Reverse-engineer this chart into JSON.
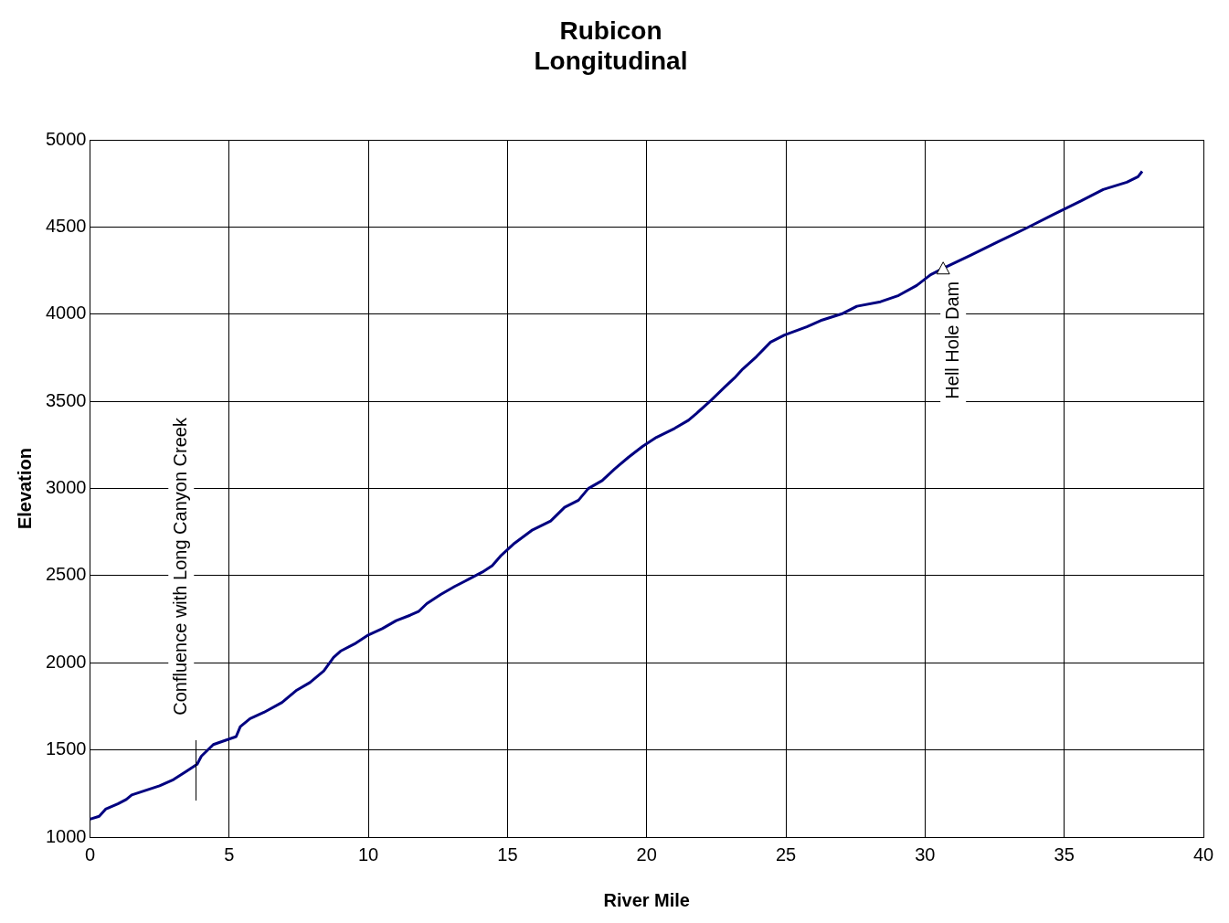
{
  "chart_data": {
    "type": "line",
    "title": "Rubicon\nLongitudinal",
    "xlabel": "River Mile",
    "ylabel": "Elevation",
    "xlim": [
      0,
      40
    ],
    "xticks": [
      0,
      5,
      10,
      15,
      20,
      25,
      30,
      35,
      40
    ],
    "ylim": [
      1000,
      5000
    ],
    "yticks": [
      1000,
      1500,
      2000,
      2500,
      3000,
      3500,
      4000,
      4500,
      5000
    ],
    "grid": true,
    "legend": false,
    "marker": "none",
    "line_style": "solid",
    "annotations": [
      {
        "text": "Confluence with Long Canyon Creek",
        "x": 3.8,
        "y": 1410
      },
      {
        "text": "Hell Hole Dam",
        "x": 30.65,
        "y": 4263
      }
    ],
    "series": [
      {
        "color": "#000080",
        "x": [
          0,
          0.33,
          0.56,
          1.0,
          1.3,
          1.5,
          2.0,
          2.5,
          3.0,
          3.45,
          3.85,
          4.0,
          4.43,
          4.9,
          5.25,
          5.4,
          5.75,
          6.25,
          6.9,
          7.4,
          7.9,
          8.4,
          8.75,
          9.0,
          9.5,
          10.0,
          10.5,
          11.0,
          11.5,
          11.8,
          12.1,
          12.6,
          13.1,
          13.6,
          14.1,
          14.45,
          14.75,
          15.25,
          15.9,
          16.55,
          17.05,
          17.55,
          17.9,
          18.4,
          18.85,
          19.35,
          19.85,
          20.35,
          21.0,
          21.5,
          21.8,
          22.3,
          22.8,
          23.15,
          23.45,
          23.95,
          24.45,
          24.95,
          25.75,
          26.25,
          27.05,
          27.55,
          28.4,
          29.05,
          29.7,
          30.2,
          30.7,
          31.65,
          32.65,
          33.65,
          34.6,
          35.6,
          36.4,
          37.25,
          37.65,
          37.8
        ],
        "values": [
          1103,
          1119,
          1160,
          1191,
          1216,
          1242,
          1268,
          1294,
          1330,
          1376,
          1418,
          1464,
          1531,
          1557,
          1577,
          1634,
          1680,
          1716,
          1773,
          1840,
          1887,
          1954,
          2031,
          2067,
          2108,
          2160,
          2196,
          2242,
          2273,
          2294,
          2340,
          2392,
          2438,
          2479,
          2521,
          2557,
          2613,
          2686,
          2763,
          2814,
          2892,
          2933,
          3000,
          3046,
          3113,
          3180,
          3242,
          3294,
          3345,
          3392,
          3433,
          3505,
          3582,
          3634,
          3686,
          3758,
          3840,
          3881,
          3928,
          3964,
          4005,
          4046,
          4072,
          4108,
          4165,
          4227,
          4268,
          4340,
          4418,
          4495,
          4572,
          4650,
          4716,
          4758,
          4789,
          4820
        ]
      }
    ]
  }
}
